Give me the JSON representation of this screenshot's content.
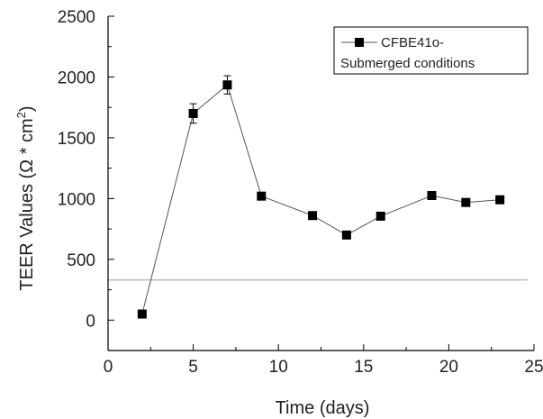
{
  "chart_data": {
    "type": "line",
    "title": "",
    "xlabel": "Time (days)",
    "ylabel_main": "TEER Values (Ω * cm",
    "ylabel_sup": "2",
    "ylabel_close": ")",
    "xlim": [
      0,
      25
    ],
    "ylim": [
      -250,
      2500
    ],
    "xticks": [
      "0",
      "5",
      "10",
      "15",
      "20",
      "25"
    ],
    "yticks": [
      "0",
      "500",
      "1000",
      "1500",
      "2000",
      "2500"
    ],
    "legend_position": "top-right",
    "series": [
      {
        "name_line1": "CFBE41o-",
        "name_line2": "Submerged conditions",
        "color": "#000000",
        "marker": "square",
        "x": [
          2,
          5,
          7,
          9,
          12,
          14,
          16,
          19,
          21,
          23
        ],
        "y": [
          50,
          1700,
          1935,
          1020,
          860,
          700,
          855,
          1025,
          968,
          990
        ],
        "error": [
          0,
          80,
          75,
          0,
          0,
          0,
          0,
          0,
          0,
          0
        ]
      }
    ],
    "reference_line": {
      "y": 330,
      "color": "#9a9a9a"
    }
  }
}
